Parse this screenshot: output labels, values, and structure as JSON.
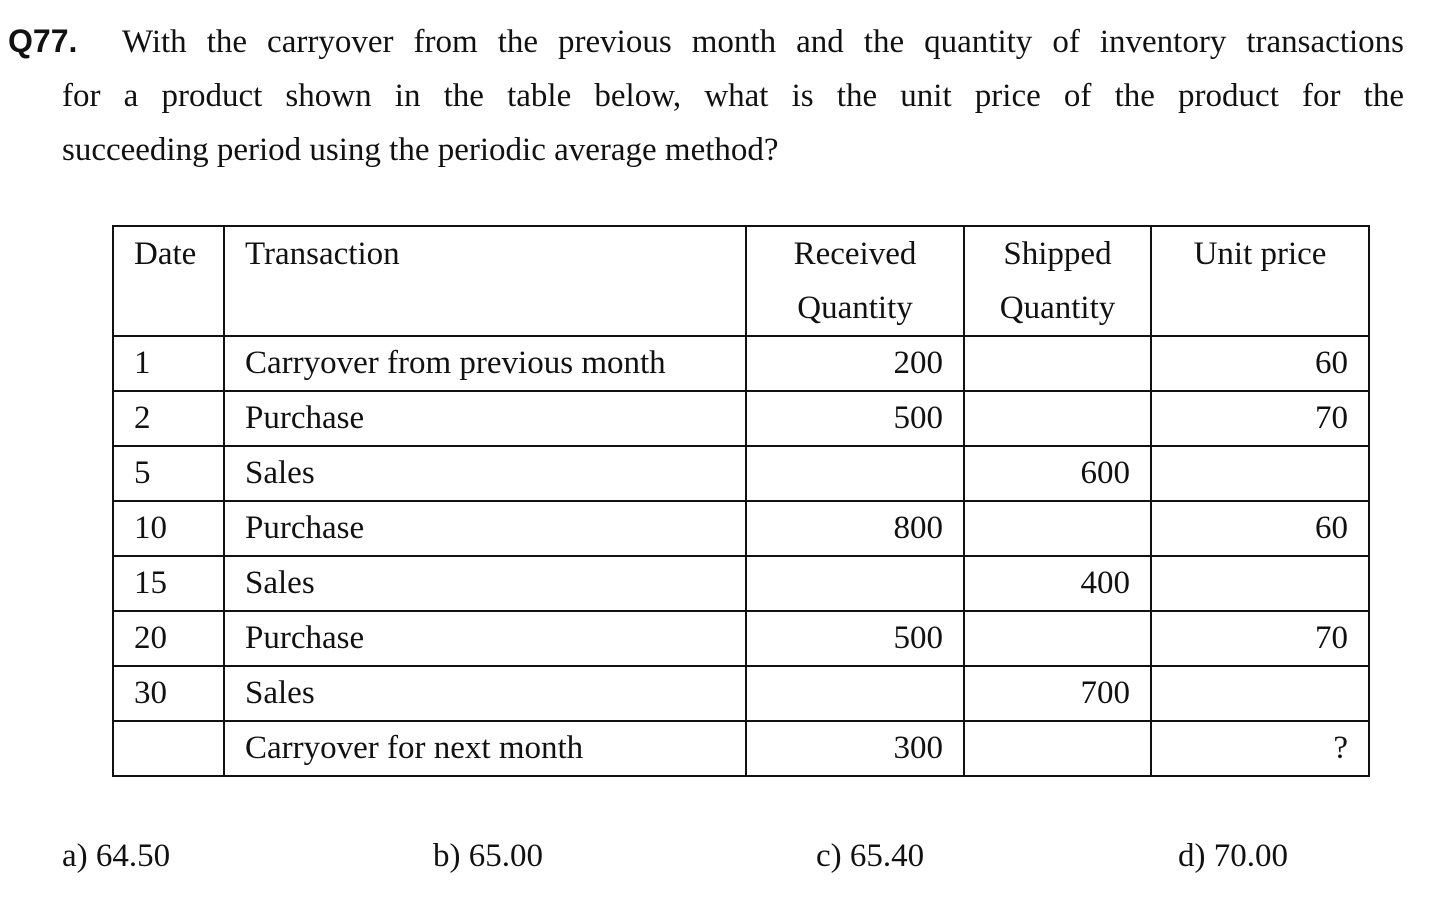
{
  "question": {
    "number": "Q77.",
    "lines": [
      "With the carryover from the previous month and the quantity of inventory transactions",
      "for a product shown in the table below, what is the unit price of the product for the",
      "succeeding period using the periodic average method?"
    ]
  },
  "table": {
    "headers": {
      "date": "Date",
      "transaction": "Transaction",
      "received_line1": "Received",
      "received_line2": "Quantity",
      "shipped_line1": "Shipped",
      "shipped_line2": "Quantity",
      "unit_price": "Unit price"
    },
    "rows": [
      {
        "date": "1",
        "transaction": "Carryover from previous month",
        "received": "200",
        "shipped": "",
        "unit_price": "60"
      },
      {
        "date": "2",
        "transaction": "Purchase",
        "received": "500",
        "shipped": "",
        "unit_price": "70"
      },
      {
        "date": "5",
        "transaction": "Sales",
        "received": "",
        "shipped": "600",
        "unit_price": ""
      },
      {
        "date": "10",
        "transaction": "Purchase",
        "received": "800",
        "shipped": "",
        "unit_price": "60"
      },
      {
        "date": "15",
        "transaction": "Sales",
        "received": "",
        "shipped": "400",
        "unit_price": ""
      },
      {
        "date": "20",
        "transaction": "Purchase",
        "received": "500",
        "shipped": "",
        "unit_price": "70"
      },
      {
        "date": "30",
        "transaction": "Sales",
        "received": "",
        "shipped": "700",
        "unit_price": ""
      },
      {
        "date": "",
        "transaction": "Carryover for next month",
        "received": "300",
        "shipped": "",
        "unit_price": "?"
      }
    ]
  },
  "choices": [
    "a) 64.50",
    "b) 65.00",
    "c) 65.40",
    "d) 70.00"
  ]
}
